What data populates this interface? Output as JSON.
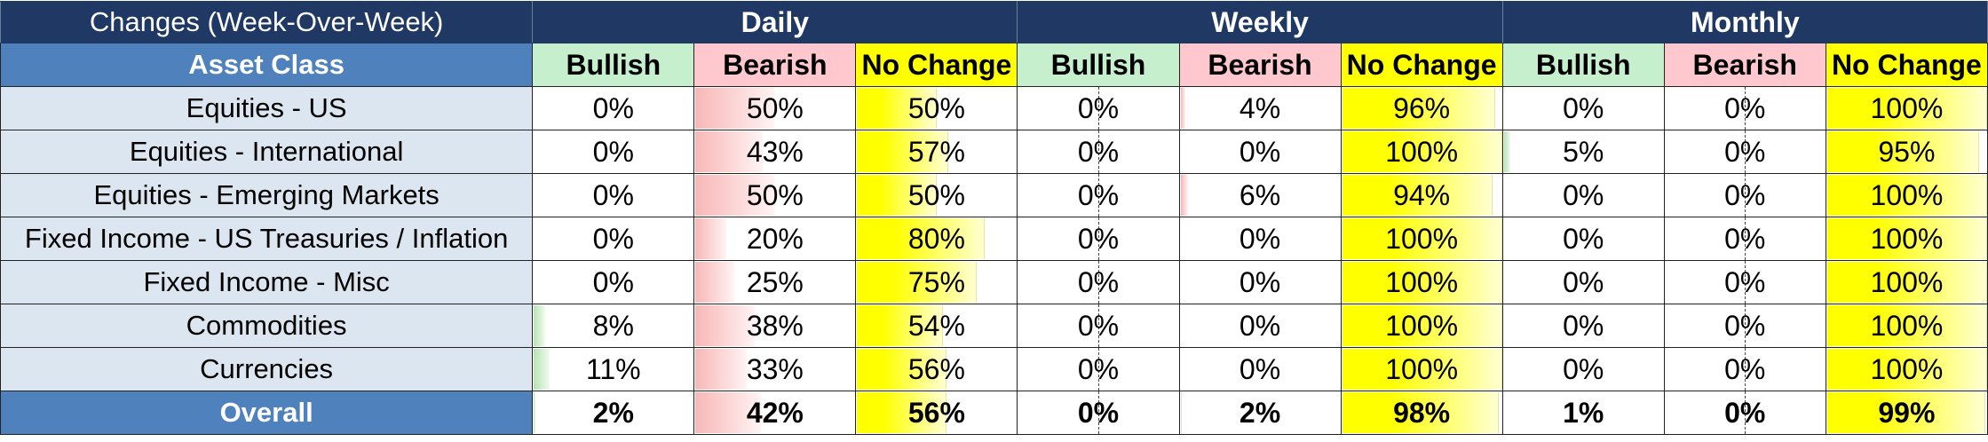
{
  "header": {
    "corner": "Changes (Week-Over-Week)",
    "groups": [
      "Daily",
      "Weekly",
      "Monthly"
    ],
    "asset_label": "Asset Class",
    "sub_labels": [
      "Bullish",
      "Bearish",
      "No Change"
    ]
  },
  "colors": {
    "dark_header": "#1f3864",
    "asset_header": "#4f81bd",
    "asset_cell": "#dce6f1",
    "bullish": "#c6efce",
    "bearish": "#ffc7ce",
    "no_change": "#ffff00"
  },
  "rows": [
    {
      "name": "Equities - US",
      "vals": [
        "0%",
        "50%",
        "50%",
        "0%",
        "4%",
        "96%",
        "0%",
        "0%",
        "100%"
      ],
      "nums": [
        0,
        50,
        50,
        0,
        4,
        96,
        0,
        0,
        100
      ]
    },
    {
      "name": "Equities - International",
      "vals": [
        "0%",
        "43%",
        "57%",
        "0%",
        "0%",
        "100%",
        "5%",
        "0%",
        "95%"
      ],
      "nums": [
        0,
        43,
        57,
        0,
        0,
        100,
        5,
        0,
        95
      ]
    },
    {
      "name": "Equities - Emerging Markets",
      "vals": [
        "0%",
        "50%",
        "50%",
        "0%",
        "6%",
        "94%",
        "0%",
        "0%",
        "100%"
      ],
      "nums": [
        0,
        50,
        50,
        0,
        6,
        94,
        0,
        0,
        100
      ]
    },
    {
      "name": "Fixed Income - US Treasuries / Inflation",
      "vals": [
        "0%",
        "20%",
        "80%",
        "0%",
        "0%",
        "100%",
        "0%",
        "0%",
        "100%"
      ],
      "nums": [
        0,
        20,
        80,
        0,
        0,
        100,
        0,
        0,
        100
      ]
    },
    {
      "name": "Fixed Income - Misc",
      "vals": [
        "0%",
        "25%",
        "75%",
        "0%",
        "0%",
        "100%",
        "0%",
        "0%",
        "100%"
      ],
      "nums": [
        0,
        25,
        75,
        0,
        0,
        100,
        0,
        0,
        100
      ]
    },
    {
      "name": "Commodities",
      "vals": [
        "8%",
        "38%",
        "54%",
        "0%",
        "0%",
        "100%",
        "0%",
        "0%",
        "100%"
      ],
      "nums": [
        8,
        38,
        54,
        0,
        0,
        100,
        0,
        0,
        100
      ]
    },
    {
      "name": "Currencies",
      "vals": [
        "11%",
        "33%",
        "56%",
        "0%",
        "0%",
        "100%",
        "0%",
        "0%",
        "100%"
      ],
      "nums": [
        11,
        33,
        56,
        0,
        0,
        100,
        0,
        0,
        100
      ]
    }
  ],
  "overall": {
    "name": "Overall",
    "vals": [
      "2%",
      "42%",
      "56%",
      "0%",
      "2%",
      "98%",
      "1%",
      "0%",
      "99%"
    ],
    "nums": [
      2,
      42,
      56,
      0,
      2,
      98,
      1,
      0,
      99
    ]
  }
}
